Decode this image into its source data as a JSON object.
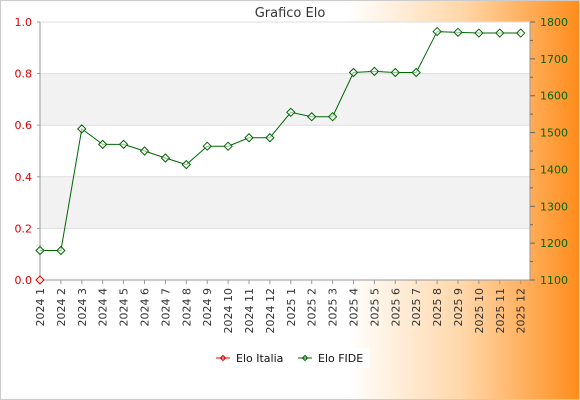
{
  "chart_data": {
    "type": "line",
    "title": "Grafico Elo",
    "categories": [
      "2024 1",
      "2024 2",
      "2024 3",
      "2024 4",
      "2024 5",
      "2024 6",
      "2024 7",
      "2024 8",
      "2024 9",
      "2024 10",
      "2024 11",
      "2024 12",
      "2025 1",
      "2025 2",
      "2025 3",
      "2025 4",
      "2025 5",
      "2025 6",
      "2025 7",
      "2025 8",
      "2025 9",
      "2025 10",
      "2025 11",
      "2025 12"
    ],
    "y_left": {
      "ylim": [
        0,
        1
      ],
      "ticks": [
        "0.0",
        "0.2",
        "0.4",
        "0.6",
        "0.8",
        "1.0"
      ],
      "color": "#dd0000"
    },
    "y_right": {
      "ylim": [
        1100,
        1800
      ],
      "ticks": [
        "1100",
        "1200",
        "1300",
        "1400",
        "1500",
        "1600",
        "1700",
        "1800"
      ],
      "color": "#006600"
    },
    "grid": true,
    "legend_position": "bottom-center",
    "series": [
      {
        "name": "Elo Italia",
        "axis": "left",
        "color": "#dd0000",
        "values": [
          0,
          null,
          null,
          null,
          null,
          null,
          null,
          null,
          null,
          null,
          null,
          null,
          null,
          null,
          null,
          null,
          null,
          null,
          null,
          null,
          null,
          null,
          null,
          null
        ]
      },
      {
        "name": "Elo FIDE",
        "axis": "right",
        "color": "#006600",
        "values": [
          1180,
          1180,
          1510,
          1468,
          1468,
          1450,
          1431,
          1413,
          1463,
          1463,
          1486,
          1486,
          1555,
          1543,
          1543,
          1663,
          1666,
          1663,
          1663,
          1774,
          1772,
          1770,
          1770,
          1770
        ]
      }
    ]
  }
}
